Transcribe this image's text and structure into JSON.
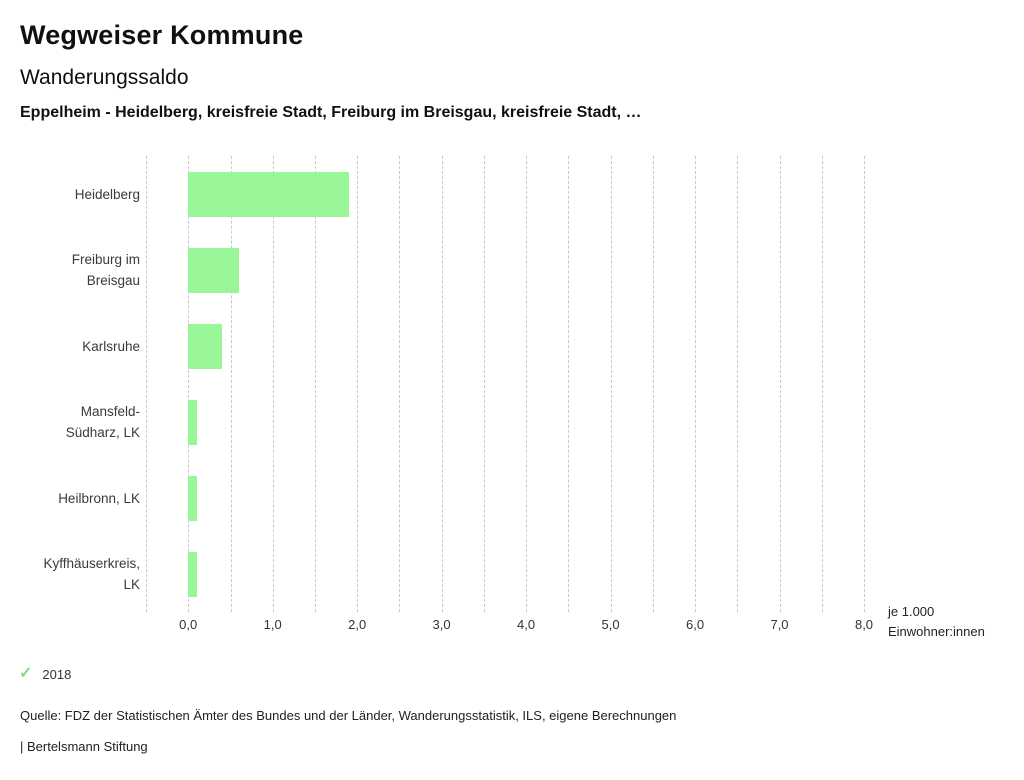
{
  "header": {
    "title": "Wegweiser Kommune",
    "subtitle": "Wanderungssaldo",
    "comparison": "Eppelheim - Heidelberg, kreisfreie Stadt, Freiburg im Breisgau, kreisfreie Stadt, …"
  },
  "chart_data": {
    "type": "bar",
    "orientation": "horizontal",
    "title": "Wanderungssaldo",
    "categories": [
      "Heidelberg",
      "Freiburg im Breisgau",
      "Karlsruhe",
      "Mansfeld-Südharz, LK",
      "Heilbronn, LK",
      "Kyffhäuserkreis, LK"
    ],
    "series": [
      {
        "name": "2018",
        "values": [
          1.9,
          0.6,
          0.4,
          0.1,
          0.1,
          0.1
        ]
      }
    ],
    "xlabel": "je 1.000 Einwohner:innen",
    "xlim": [
      -0.5,
      8.0
    ],
    "x_ticks": [
      "0,0",
      "1,0",
      "2,0",
      "3,0",
      "4,0",
      "5,0",
      "6,0",
      "7,0",
      "8,0"
    ],
    "tick_step": 1.0,
    "grid_step": 0.5,
    "grid": true,
    "legend_position": "bottom-left",
    "bar_color": "#98f598",
    "grid_color": "#c9c9c9"
  },
  "legend": {
    "check_icon": "✓",
    "check_color": "#82d987",
    "label": "2018"
  },
  "footer": {
    "source": "Quelle: FDZ der Statistischen Ämter des Bundes und der Länder, Wanderungsstatistik, ILS, eigene Berechnungen",
    "attribution": "| Bertelsmann Stiftung"
  }
}
